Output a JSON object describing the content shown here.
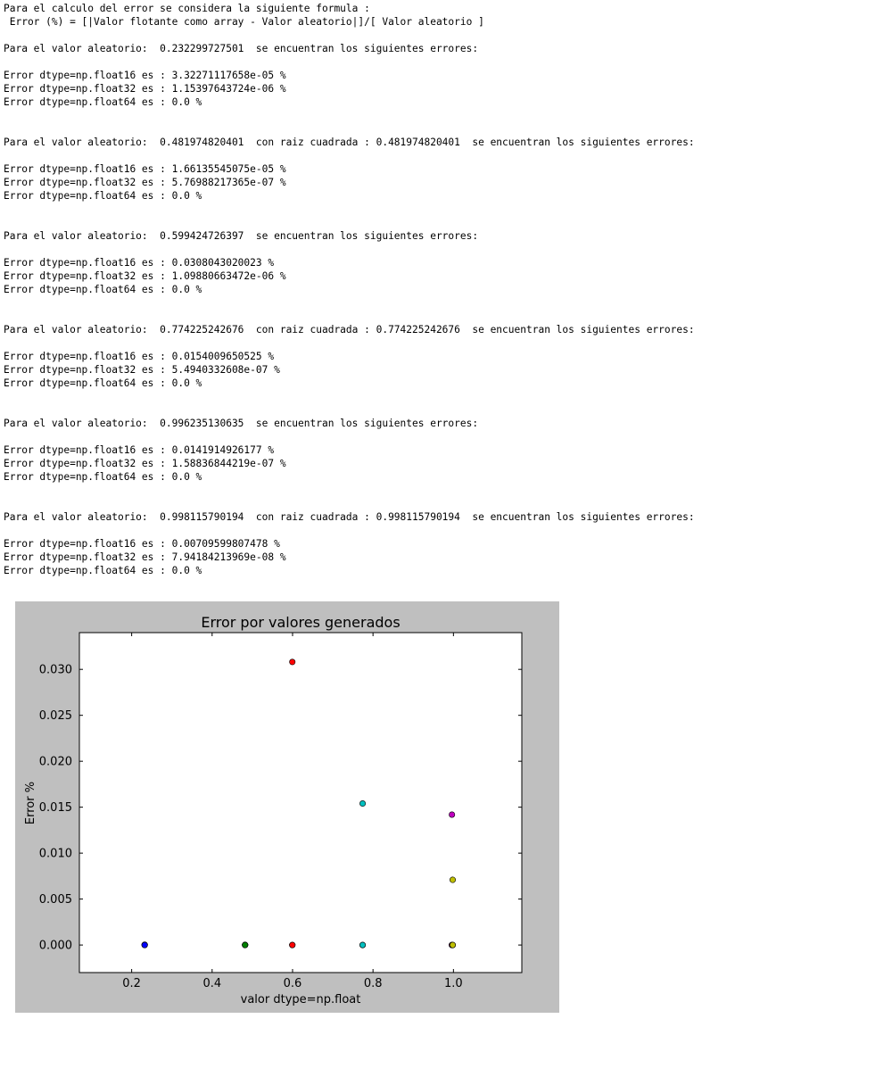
{
  "output_lines": [
    "Para el calculo del error se considera la siguiente formula :",
    " Error (%) = [|Valor flotante como array - Valor aleatorio|]/[ Valor aleatorio ]",
    "",
    "Para el valor aleatorio:  0.232299727501  se encuentran los siguientes errores:",
    "",
    "Error dtype=np.float16 es : 3.32271117658e-05 %",
    "Error dtype=np.float32 es : 1.15397643724e-06 %",
    "Error dtype=np.float64 es : 0.0 %",
    "",
    "",
    "Para el valor aleatorio:  0.481974820401  con raiz cuadrada : 0.481974820401  se encuentran los siguientes errores:",
    "",
    "Error dtype=np.float16 es : 1.66135545075e-05 %",
    "Error dtype=np.float32 es : 5.76988217365e-07 %",
    "Error dtype=np.float64 es : 0.0 %",
    "",
    "",
    "Para el valor aleatorio:  0.599424726397  se encuentran los siguientes errores:",
    "",
    "Error dtype=np.float16 es : 0.0308043020023 %",
    "Error dtype=np.float32 es : 1.09880663472e-06 %",
    "Error dtype=np.float64 es : 0.0 %",
    "",
    "",
    "Para el valor aleatorio:  0.774225242676  con raiz cuadrada : 0.774225242676  se encuentran los siguientes errores:",
    "",
    "Error dtype=np.float16 es : 0.0154009650525 %",
    "Error dtype=np.float32 es : 5.4940332608e-07 %",
    "Error dtype=np.float64 es : 0.0 %",
    "",
    "",
    "Para el valor aleatorio:  0.996235130635  se encuentran los siguientes errores:",
    "",
    "Error dtype=np.float16 es : 0.0141914926177 %",
    "Error dtype=np.float32 es : 1.58836844219e-07 %",
    "Error dtype=np.float64 es : 0.0 %",
    "",
    "",
    "Para el valor aleatorio:  0.998115790194  con raiz cuadrada : 0.998115790194  se encuentran los siguientes errores:",
    "",
    "Error dtype=np.float16 es : 0.00709599807478 %",
    "Error dtype=np.float32 es : 7.94184213969e-08 %",
    "Error dtype=np.float64 es : 0.0 %"
  ],
  "chart_data": {
    "type": "scatter",
    "title": "Error por valores generados",
    "xlabel": "valor dtype=np.float",
    "ylabel": "Error %",
    "xlim": [
      0.07,
      1.17
    ],
    "ylim": [
      -0.003,
      0.034
    ],
    "xticks": [
      0.2,
      0.4,
      0.6,
      0.8,
      1.0
    ],
    "xtick_labels": [
      "0.2",
      "0.4",
      "0.6",
      "0.8",
      "1.0"
    ],
    "yticks": [
      0.0,
      0.005,
      0.01,
      0.015,
      0.02,
      0.025,
      0.03
    ],
    "ytick_labels": [
      "0.000",
      "0.005",
      "0.010",
      "0.015",
      "0.020",
      "0.025",
      "0.030"
    ],
    "grid": false,
    "figure_background": "#bfbfbf",
    "axes_background": "#ffffff",
    "series": [
      {
        "color": "#0000ff",
        "points": [
          [
            0.232299727501,
            3.32271117658e-05
          ],
          [
            0.232299727501,
            1.15397643724e-06
          ],
          [
            0.232299727501,
            0.0
          ]
        ]
      },
      {
        "color": "#008000",
        "points": [
          [
            0.481974820401,
            1.66135545075e-05
          ],
          [
            0.481974820401,
            5.76988217365e-07
          ],
          [
            0.481974820401,
            0.0
          ]
        ]
      },
      {
        "color": "#ff0000",
        "points": [
          [
            0.599424726397,
            0.0308043020023
          ],
          [
            0.599424726397,
            1.09880663472e-06
          ],
          [
            0.599424726397,
            0.0
          ]
        ]
      },
      {
        "color": "#00bfbf",
        "points": [
          [
            0.774225242676,
            0.0154009650525
          ],
          [
            0.774225242676,
            5.4940332608e-07
          ],
          [
            0.774225242676,
            0.0
          ]
        ]
      },
      {
        "color": "#bf00bf",
        "points": [
          [
            0.996235130635,
            0.0141914926177
          ],
          [
            0.996235130635,
            1.58836844219e-07
          ],
          [
            0.996235130635,
            0.0
          ]
        ]
      },
      {
        "color": "#bfbf00",
        "points": [
          [
            0.998115790194,
            0.00709599807478
          ],
          [
            0.998115790194,
            7.94184213969e-08
          ],
          [
            0.998115790194,
            0.0
          ]
        ]
      }
    ]
  }
}
